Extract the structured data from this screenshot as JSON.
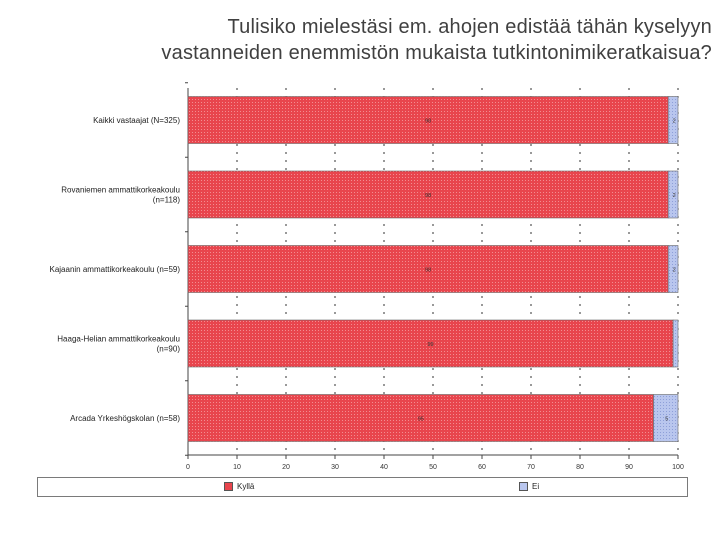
{
  "title_line1": "Tulisiko mielestäsi em. ahojen edistää tähän kyselyyn",
  "title_line2": "vastanneiden enemmistön mukaista tutkintonimikeratkaisua?",
  "colors": {
    "kylla": "#e8454d",
    "ei": "#b9c6ee"
  },
  "chart_data": {
    "type": "bar",
    "orientation": "horizontal",
    "stacked": true,
    "categories": [
      [
        "Kaikki vastaajat (N=325)"
      ],
      [
        "Rovaniemen ammattikorkeakoulu",
        "(n=118)"
      ],
      [
        "Kajaanin ammattikorkeakoulu (n=59)"
      ],
      [
        "Haaga-Helian ammattikorkeakoulu",
        "(n=90)"
      ],
      [
        "Arcada Yrkeshögskolan (n=58)"
      ]
    ],
    "series": [
      {
        "name": "Kyllä",
        "values": [
          98,
          98,
          98,
          99,
          95
        ],
        "labels": [
          "98",
          "98",
          "98",
          "99",
          "95"
        ]
      },
      {
        "name": "Ei",
        "values": [
          2,
          2,
          2,
          1,
          5
        ],
        "labels": [
          "2",
          "2",
          "2",
          "",
          "5"
        ]
      }
    ],
    "xlim": [
      0,
      100
    ],
    "xticks": [
      "0",
      "10",
      "20",
      "30",
      "40",
      "50",
      "60",
      "70",
      "80",
      "90",
      "100"
    ],
    "grid": true,
    "legend_position": "bottom"
  }
}
